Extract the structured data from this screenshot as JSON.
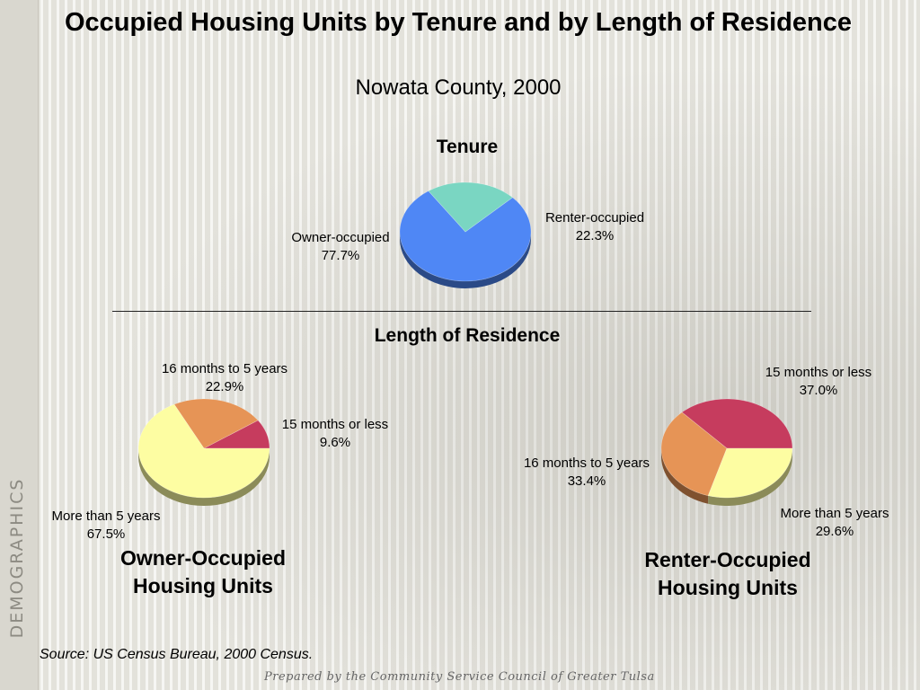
{
  "side_label": "DEMOGRAPHICS",
  "title": "Occupied Housing Units by Tenure and by Length of Residence",
  "subtitle": "Nowata County, 2000",
  "sections": {
    "tenure_title": "Tenure",
    "length_title": "Length of Residence"
  },
  "chart_data": [
    {
      "type": "pie",
      "title": "Tenure",
      "categories": [
        "Owner-occupied",
        "Renter-occupied"
      ],
      "values": [
        77.7,
        22.3
      ],
      "value_labels": [
        "77.7%",
        "22.3%"
      ],
      "colors": [
        "#4f87f5",
        "#7ad6c2"
      ]
    },
    {
      "type": "pie",
      "title": "Owner-Occupied Housing Units",
      "categories": [
        "15 months or less",
        "16 months to 5 years",
        "More than 5 years"
      ],
      "values": [
        9.6,
        22.9,
        67.5
      ],
      "value_labels": [
        "9.6%",
        "22.9%",
        "67.5%"
      ],
      "colors": [
        "#c63c5e",
        "#e69456",
        "#fdfda2"
      ]
    },
    {
      "type": "pie",
      "title": "Renter-Occupied Housing Units",
      "categories": [
        "15 months or less",
        "16 months to 5 years",
        "More than 5 years"
      ],
      "values": [
        37.0,
        33.4,
        29.6
      ],
      "value_labels": [
        "37.0%",
        "33.4%",
        "29.6%"
      ],
      "colors": [
        "#c63c5e",
        "#e69456",
        "#fdfda2"
      ]
    }
  ],
  "captions": {
    "owner_line1": "Owner-Occupied",
    "owner_line2": "Housing Units",
    "renter_line1": "Renter-Occupied",
    "renter_line2": "Housing Units"
  },
  "source": "Source:  US Census Bureau, 2000 Census.",
  "prepared_by": "Prepared by the Community Service Council of Greater Tulsa"
}
